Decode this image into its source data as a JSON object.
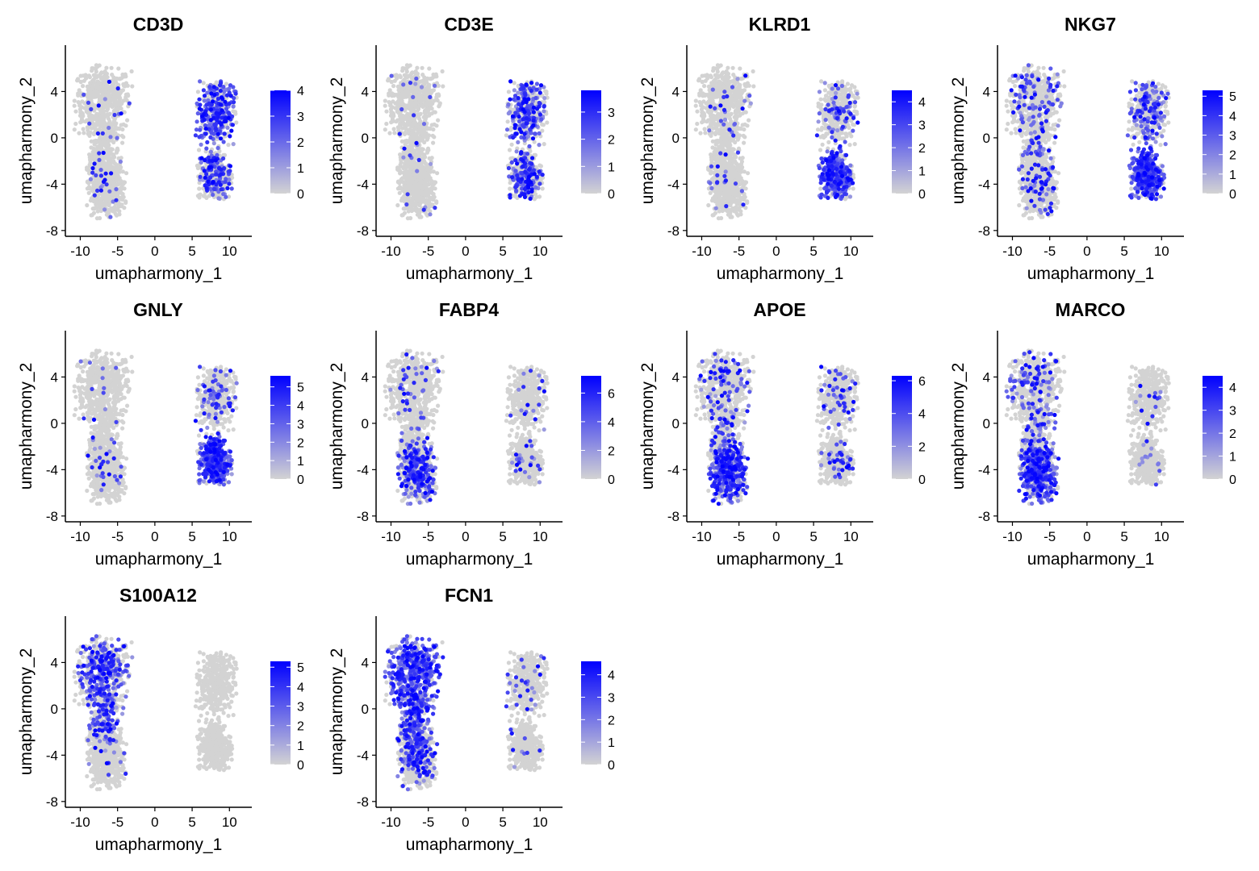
{
  "figure": {
    "gene_titles": [
      "CD3D",
      "CD3E",
      "KLRD1",
      "NKG7",
      "GNLY",
      "FABP4",
      "APOE",
      "MARCO",
      "S100A12",
      "FCN1"
    ]
  },
  "chart_data": [
    {
      "type": "scatter",
      "title": "CD3D",
      "xlabel": "umapharmony_1",
      "ylabel": "umapharmony_2",
      "xlim": [
        -12,
        13
      ],
      "ylim": [
        -8.5,
        8
      ],
      "xticks": [
        "-10",
        "-5",
        "0",
        "5",
        "10"
      ],
      "yticks": [
        "-8",
        "-4",
        "0",
        "4"
      ],
      "legend": {
        "placement": "right",
        "min": 0,
        "max": 4,
        "ticks": [
          "0",
          "1",
          "2",
          "3",
          "4"
        ]
      },
      "colors": {
        "low": "#d3d3d3",
        "high": "#0000ff"
      },
      "expression": {
        "left_top": 0.02,
        "left_bottom": 0.03,
        "right_top": 0.55,
        "right_bottom": 0.3
      },
      "grid": false
    },
    {
      "type": "scatter",
      "title": "CD3E",
      "xlabel": "umapharmony_1",
      "ylabel": "umapharmony_2",
      "xlim": [
        -12,
        13
      ],
      "ylim": [
        -8.5,
        8
      ],
      "xticks": [
        "-10",
        "-5",
        "0",
        "5",
        "10"
      ],
      "yticks": [
        "-8",
        "-4",
        "0",
        "4"
      ],
      "legend": {
        "placement": "right",
        "min": 0,
        "max": 3.8,
        "ticks": [
          "0",
          "1",
          "2",
          "3"
        ]
      },
      "colors": {
        "low": "#d3d3d3",
        "high": "#0000ff"
      },
      "expression": {
        "left_top": 0.02,
        "left_bottom": 0.02,
        "right_top": 0.5,
        "right_bottom": 0.4
      },
      "grid": false
    },
    {
      "type": "scatter",
      "title": "KLRD1",
      "xlabel": "umapharmony_1",
      "ylabel": "umapharmony_2",
      "xlim": [
        -12,
        13
      ],
      "ylim": [
        -8.5,
        8
      ],
      "xticks": [
        "-10",
        "-5",
        "0",
        "5",
        "10"
      ],
      "yticks": [
        "-8",
        "-4",
        "0",
        "4"
      ],
      "legend": {
        "placement": "right",
        "min": 0,
        "max": 4.5,
        "ticks": [
          "0",
          "1",
          "2",
          "3",
          "4"
        ]
      },
      "colors": {
        "low": "#d3d3d3",
        "high": "#0000ff"
      },
      "expression": {
        "left_top": 0.03,
        "left_bottom": 0.03,
        "right_top": 0.2,
        "right_bottom": 0.7
      },
      "grid": false
    },
    {
      "type": "scatter",
      "title": "NKG7",
      "xlabel": "umapharmony_1",
      "ylabel": "umapharmony_2",
      "xlim": [
        -12,
        13
      ],
      "ylim": [
        -8.5,
        8
      ],
      "xticks": [
        "-10",
        "-5",
        "0",
        "5",
        "10"
      ],
      "yticks": [
        "-8",
        "-4",
        "0",
        "4"
      ],
      "legend": {
        "placement": "right",
        "min": 0,
        "max": 5.3,
        "ticks": [
          "0",
          "1",
          "2",
          "3",
          "4",
          "5"
        ]
      },
      "colors": {
        "low": "#d3d3d3",
        "high": "#0000ff"
      },
      "expression": {
        "left_top": 0.15,
        "left_bottom": 0.1,
        "right_top": 0.3,
        "right_bottom": 0.8
      },
      "grid": false
    },
    {
      "type": "scatter",
      "title": "GNLY",
      "xlabel": "umapharmony_1",
      "ylabel": "umapharmony_2",
      "xlim": [
        -12,
        13
      ],
      "ylim": [
        -8.5,
        8
      ],
      "xticks": [
        "-10",
        "-5",
        "0",
        "5",
        "10"
      ],
      "yticks": [
        "-8",
        "-4",
        "0",
        "4"
      ],
      "legend": {
        "placement": "right",
        "min": 0,
        "max": 5.6,
        "ticks": [
          "0",
          "1",
          "2",
          "3",
          "4",
          "5"
        ]
      },
      "colors": {
        "low": "#d3d3d3",
        "high": "#0000ff"
      },
      "expression": {
        "left_top": 0.02,
        "left_bottom": 0.03,
        "right_top": 0.15,
        "right_bottom": 0.75
      },
      "grid": false
    },
    {
      "type": "scatter",
      "title": "FABP4",
      "xlabel": "umapharmony_1",
      "ylabel": "umapharmony_2",
      "xlim": [
        -12,
        13
      ],
      "ylim": [
        -8.5,
        8
      ],
      "xticks": [
        "-10",
        "-5",
        "0",
        "5",
        "10"
      ],
      "yticks": [
        "-8",
        "-4",
        "0",
        "4"
      ],
      "legend": {
        "placement": "right",
        "min": 0,
        "max": 7.2,
        "ticks": [
          "0",
          "2",
          "4",
          "6"
        ]
      },
      "colors": {
        "low": "#d3d3d3",
        "high": "#0000ff"
      },
      "expression": {
        "left_top": 0.05,
        "left_bottom": 0.45,
        "right_top": 0.05,
        "right_bottom": 0.05
      },
      "grid": false
    },
    {
      "type": "scatter",
      "title": "APOE",
      "xlabel": "umapharmony_1",
      "ylabel": "umapharmony_2",
      "xlim": [
        -12,
        13
      ],
      "ylim": [
        -8.5,
        8
      ],
      "xticks": [
        "-10",
        "-5",
        "0",
        "5",
        "10"
      ],
      "yticks": [
        "-8",
        "-4",
        "0",
        "4"
      ],
      "legend": {
        "placement": "right",
        "min": 0,
        "max": 6.3,
        "ticks": [
          "0",
          "2",
          "4",
          "6"
        ]
      },
      "colors": {
        "low": "#d3d3d3",
        "high": "#0000ff"
      },
      "expression": {
        "left_top": 0.15,
        "left_bottom": 0.7,
        "right_top": 0.1,
        "right_bottom": 0.1
      },
      "grid": false
    },
    {
      "type": "scatter",
      "title": "MARCO",
      "xlabel": "umapharmony_1",
      "ylabel": "umapharmony_2",
      "xlim": [
        -12,
        13
      ],
      "ylim": [
        -8.5,
        8
      ],
      "xticks": [
        "-10",
        "-5",
        "0",
        "5",
        "10"
      ],
      "yticks": [
        "-8",
        "-4",
        "0",
        "4"
      ],
      "legend": {
        "placement": "right",
        "min": 0,
        "max": 4.5,
        "ticks": [
          "0",
          "1",
          "2",
          "3",
          "4"
        ]
      },
      "colors": {
        "low": "#d3d3d3",
        "high": "#0000ff"
      },
      "expression": {
        "left_top": 0.2,
        "left_bottom": 0.7,
        "right_top": 0.05,
        "right_bottom": 0.03
      },
      "grid": false
    },
    {
      "type": "scatter",
      "title": "S100A12",
      "xlabel": "umapharmony_1",
      "ylabel": "umapharmony_2",
      "xlim": [
        -12,
        13
      ],
      "ylim": [
        -8.5,
        8
      ],
      "xticks": [
        "-10",
        "-5",
        "0",
        "5",
        "10"
      ],
      "yticks": [
        "-8",
        "-4",
        "0",
        "4"
      ],
      "legend": {
        "placement": "right",
        "min": 0,
        "max": 5.3,
        "ticks": [
          "0",
          "1",
          "2",
          "3",
          "4",
          "5"
        ]
      },
      "colors": {
        "low": "#d3d3d3",
        "high": "#0000ff"
      },
      "expression": {
        "left_top": 0.45,
        "left_bottom": 0.03,
        "right_top": 0.0,
        "right_bottom": 0.0
      },
      "grid": false
    },
    {
      "type": "scatter",
      "title": "FCN1",
      "xlabel": "umapharmony_1",
      "ylabel": "umapharmony_2",
      "xlim": [
        -12,
        13
      ],
      "ylim": [
        -8.5,
        8
      ],
      "xticks": [
        "-10",
        "-5",
        "0",
        "5",
        "10"
      ],
      "yticks": [
        "-8",
        "-4",
        "0",
        "4"
      ],
      "legend": {
        "placement": "right",
        "min": 0,
        "max": 4.6,
        "ticks": [
          "0",
          "1",
          "2",
          "3",
          "4"
        ]
      },
      "colors": {
        "low": "#d3d3d3",
        "high": "#0000ff"
      },
      "expression": {
        "left_top": 0.75,
        "left_bottom": 0.25,
        "right_top": 0.05,
        "right_bottom": 0.03
      },
      "grid": false
    }
  ]
}
